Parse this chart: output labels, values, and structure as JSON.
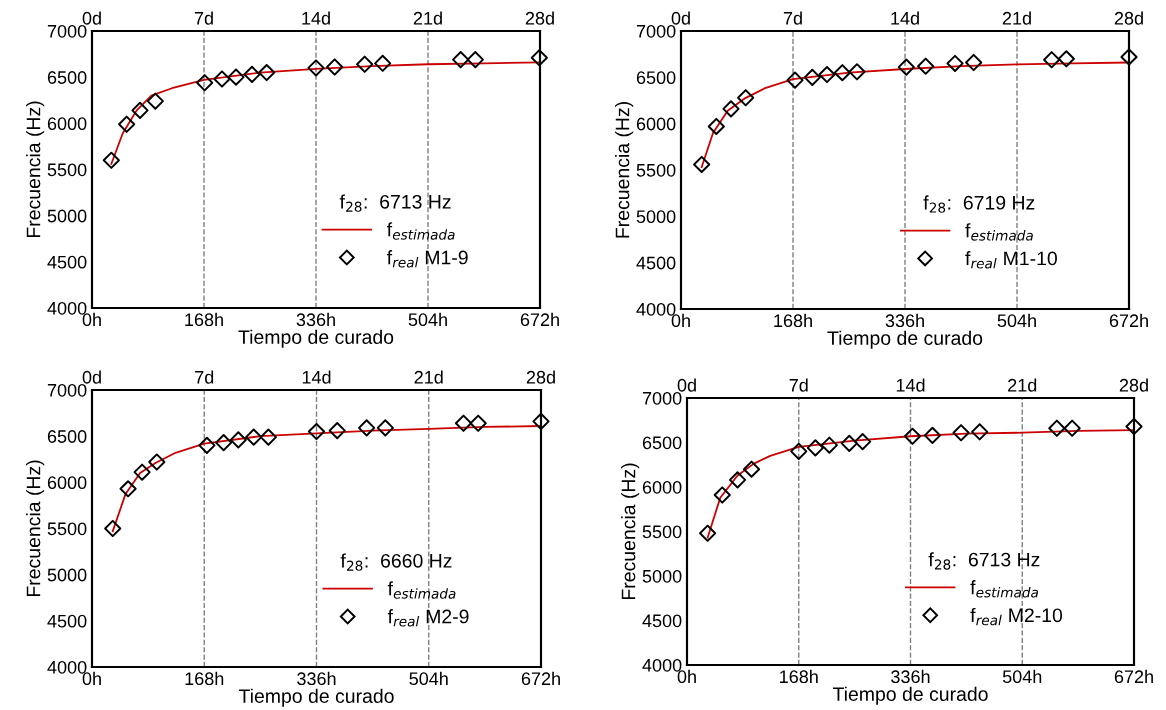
{
  "chart_data": [
    {
      "type": "line",
      "xlabel": "Tiempo de curado",
      "ylabel": "Frecuencia (Hz)",
      "legend_title": "f$_{28}$:  6713 Hz",
      "legend": "bottom right",
      "grid": "x",
      "line_style": "dashed",
      "xlim": [
        0,
        672
      ],
      "xticks": [
        {
          "value": 0,
          "label": "0h"
        },
        {
          "value": 168,
          "label": "168h"
        },
        {
          "value": 336,
          "label": "336h"
        },
        {
          "value": 504,
          "label": "504h"
        },
        {
          "value": 672,
          "label": "672h"
        }
      ],
      "x2lim": [
        0,
        28
      ],
      "x2ticks": [
        {
          "value": 0,
          "label": "0d"
        },
        {
          "value": 7,
          "label": "7d"
        },
        {
          "value": 14,
          "label": "14d"
        },
        {
          "value": 21,
          "label": "21d"
        },
        {
          "value": 28,
          "label": "28d"
        }
      ],
      "ylim": [
        4000,
        7000
      ],
      "yticks": [
        4000,
        4500,
        5000,
        5500,
        6000,
        6500,
        7000
      ],
      "series": [
        {
          "name": "f$_{estimada}$",
          "color": "#cc0000",
          "marker": "none",
          "line_style": "solid",
          "x": [
            29,
            46,
            67,
            89,
            120,
            168,
            252,
            336,
            420,
            504,
            588,
            672
          ],
          "values": [
            5560,
            5890,
            6140,
            6300,
            6380,
            6470,
            6550,
            6590,
            6620,
            6640,
            6650,
            6660
          ]
        },
        {
          "name": "f$_{real}$ M1-9",
          "type": "scatter",
          "color": "#000000",
          "marker": "diamond",
          "x": [
            29,
            52,
            72,
            95,
            169,
            195,
            216,
            240,
            262,
            336,
            364,
            409,
            436,
            553,
            575,
            671
          ],
          "values": [
            5600,
            5990,
            6140,
            6240,
            6440,
            6480,
            6500,
            6530,
            6550,
            6600,
            6610,
            6640,
            6650,
            6690,
            6690,
            6710
          ]
        }
      ]
    },
    {
      "type": "line",
      "xlabel": "Tiempo de curado",
      "ylabel": "Frecuencia (Hz)",
      "legend_title": "f$_{28}$:  6719 Hz",
      "legend": "bottom right",
      "grid": "x",
      "line_style": "dashed",
      "xlim": [
        0,
        672
      ],
      "xticks": [
        {
          "value": 0,
          "label": "0h"
        },
        {
          "value": 168,
          "label": "168h"
        },
        {
          "value": 336,
          "label": "336h"
        },
        {
          "value": 504,
          "label": "504h"
        },
        {
          "value": 672,
          "label": "672h"
        }
      ],
      "x2lim": [
        0,
        28
      ],
      "x2ticks": [
        {
          "value": 0,
          "label": "0d"
        },
        {
          "value": 7,
          "label": "7d"
        },
        {
          "value": 14,
          "label": "14d"
        },
        {
          "value": 21,
          "label": "21d"
        },
        {
          "value": 28,
          "label": "28d"
        }
      ],
      "ylim": [
        4000,
        7000
      ],
      "yticks": [
        4000,
        4500,
        5000,
        5500,
        6000,
        6500,
        7000
      ],
      "series": [
        {
          "name": "f$_{estimada}$",
          "color": "#cc0000",
          "marker": "none",
          "line_style": "solid",
          "x": [
            31,
            48,
            70,
            95,
            125,
            168,
            252,
            336,
            420,
            504,
            588,
            672
          ],
          "values": [
            5530,
            5900,
            6140,
            6270,
            6380,
            6480,
            6550,
            6590,
            6620,
            6640,
            6650,
            6660
          ]
        },
        {
          "name": "f$_{real}$ M1-10",
          "type": "scatter",
          "color": "#000000",
          "marker": "diamond",
          "x": [
            31,
            53,
            75,
            97,
            171,
            197,
            219,
            242,
            264,
            338,
            367,
            411,
            439,
            556,
            578,
            672
          ],
          "values": [
            5560,
            5970,
            6160,
            6280,
            6470,
            6500,
            6530,
            6550,
            6560,
            6610,
            6620,
            6650,
            6660,
            6690,
            6700,
            6720
          ]
        }
      ]
    },
    {
      "type": "line",
      "xlabel": "Tiempo de curado",
      "ylabel": "Frecuencia (Hz)",
      "legend_title": "f$_{28}$:  6660 Hz",
      "legend": "bottom right",
      "grid": "x",
      "line_style": "dashed",
      "xlim": [
        0,
        672
      ],
      "xticks": [
        {
          "value": 0,
          "label": "0h"
        },
        {
          "value": 168,
          "label": "168h"
        },
        {
          "value": 336,
          "label": "336h"
        },
        {
          "value": 504,
          "label": "504h"
        },
        {
          "value": 672,
          "label": "672h"
        }
      ],
      "x2lim": [
        0,
        28
      ],
      "x2ticks": [
        {
          "value": 0,
          "label": "0d"
        },
        {
          "value": 7,
          "label": "7d"
        },
        {
          "value": 14,
          "label": "14d"
        },
        {
          "value": 21,
          "label": "21d"
        },
        {
          "value": 28,
          "label": "28d"
        }
      ],
      "ylim": [
        4000,
        7000
      ],
      "yticks": [
        4000,
        4500,
        5000,
        5500,
        6000,
        6500,
        7000
      ],
      "series": [
        {
          "name": "f$_{estimada}$",
          "color": "#cc0000",
          "marker": "none",
          "line_style": "solid",
          "x": [
            31,
            50,
            72,
            95,
            125,
            168,
            252,
            336,
            420,
            504,
            588,
            672
          ],
          "values": [
            5470,
            5870,
            6100,
            6210,
            6320,
            6420,
            6500,
            6530,
            6560,
            6580,
            6600,
            6610
          ]
        },
        {
          "name": "f$_{real}$ M2-9",
          "type": "scatter",
          "color": "#000000",
          "marker": "diamond",
          "x": [
            31,
            54,
            75,
            97,
            172,
            197,
            219,
            242,
            264,
            336,
            367,
            411,
            439,
            556,
            578,
            672
          ],
          "values": [
            5500,
            5930,
            6110,
            6220,
            6400,
            6430,
            6460,
            6490,
            6490,
            6550,
            6560,
            6590,
            6590,
            6640,
            6640,
            6660
          ]
        }
      ]
    },
    {
      "type": "line",
      "xlabel": "Tiempo de curado",
      "ylabel": "Frecuencia (Hz)",
      "legend_title": "f$_{28}$:  6713 Hz",
      "legend": "bottom right",
      "grid": "x",
      "line_style": "dashed",
      "xlim": [
        0,
        672
      ],
      "xticks": [
        {
          "value": 0,
          "label": "0h"
        },
        {
          "value": 168,
          "label": "168h"
        },
        {
          "value": 336,
          "label": "336h"
        },
        {
          "value": 504,
          "label": "504h"
        },
        {
          "value": 672,
          "label": "672h"
        }
      ],
      "x2lim": [
        0,
        28
      ],
      "x2ticks": [
        {
          "value": 0,
          "label": "0d"
        },
        {
          "value": 7,
          "label": "7d"
        },
        {
          "value": 14,
          "label": "14d"
        },
        {
          "value": 21,
          "label": "21d"
        },
        {
          "value": 28,
          "label": "28d"
        }
      ],
      "ylim": [
        4000,
        7000
      ],
      "yticks": [
        4000,
        4500,
        5000,
        5500,
        6000,
        6500,
        7000
      ],
      "series": [
        {
          "name": "f$_{estimada}$",
          "color": "#cc0000",
          "marker": "none",
          "line_style": "solid",
          "x": [
            31,
            50,
            76,
            100,
            125,
            168,
            252,
            336,
            420,
            504,
            588,
            672
          ],
          "values": [
            5430,
            5880,
            6130,
            6260,
            6350,
            6450,
            6520,
            6570,
            6600,
            6610,
            6630,
            6640
          ]
        },
        {
          "name": "f$_{real}$ M2-10",
          "type": "scatter",
          "color": "#000000",
          "marker": "diamond",
          "x": [
            31,
            53,
            76,
            97,
            168,
            193,
            214,
            244,
            264,
            339,
            369,
            412,
            440,
            556,
            579,
            672
          ],
          "values": [
            5480,
            5910,
            6080,
            6200,
            6400,
            6440,
            6470,
            6490,
            6510,
            6570,
            6580,
            6610,
            6620,
            6660,
            6660,
            6680
          ]
        }
      ]
    }
  ]
}
